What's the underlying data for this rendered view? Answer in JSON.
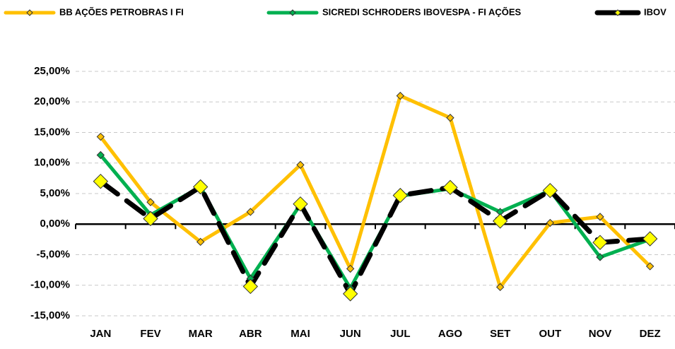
{
  "chart_data": {
    "type": "line",
    "categories": [
      "JAN",
      "FEV",
      "MAR",
      "ABR",
      "MAI",
      "JUN",
      "JUL",
      "AGO",
      "SET",
      "OUT",
      "NOV",
      "DEZ"
    ],
    "series": [
      {
        "name": "BB AÇÕES PETROBRAS I FI",
        "color": "#FFC000",
        "marker_color": "#FFC000",
        "values": [
          14.3,
          3.6,
          -2.9,
          2.0,
          9.7,
          -7.3,
          21.0,
          17.4,
          -10.3,
          0.2,
          1.2,
          -6.9
        ]
      },
      {
        "name": "SICREDI SCHRODERS IBOVESPA - FI AÇÕES",
        "color": "#00B050",
        "marker_color": "#00B050",
        "values": [
          11.3,
          1.5,
          6.1,
          -8.9,
          3.2,
          -10.5,
          4.6,
          5.8,
          2.0,
          5.5,
          -5.4,
          -2.5
        ]
      },
      {
        "name": "IBOV",
        "color": "#000000",
        "marker_color": "#FFFF00",
        "dashed": true,
        "values": [
          7.0,
          0.9,
          6.1,
          -10.2,
          3.3,
          -11.4,
          4.7,
          6.0,
          0.5,
          5.5,
          -3.0,
          -2.4
        ]
      }
    ],
    "ylim": [
      -15,
      25
    ],
    "yticks": [
      {
        "value": -15,
        "label": "-15,00%"
      },
      {
        "value": -10,
        "label": "-10,00%"
      },
      {
        "value": -5,
        "label": "-5,00%"
      },
      {
        "value": 0,
        "label": "0,00%"
      },
      {
        "value": 5,
        "label": "5,00%"
      },
      {
        "value": 10,
        "label": "10,00%"
      },
      {
        "value": 15,
        "label": "15,00%"
      },
      {
        "value": 20,
        "label": "20,00%"
      },
      {
        "value": 25,
        "label": "25,00%"
      }
    ],
    "grid": true
  }
}
